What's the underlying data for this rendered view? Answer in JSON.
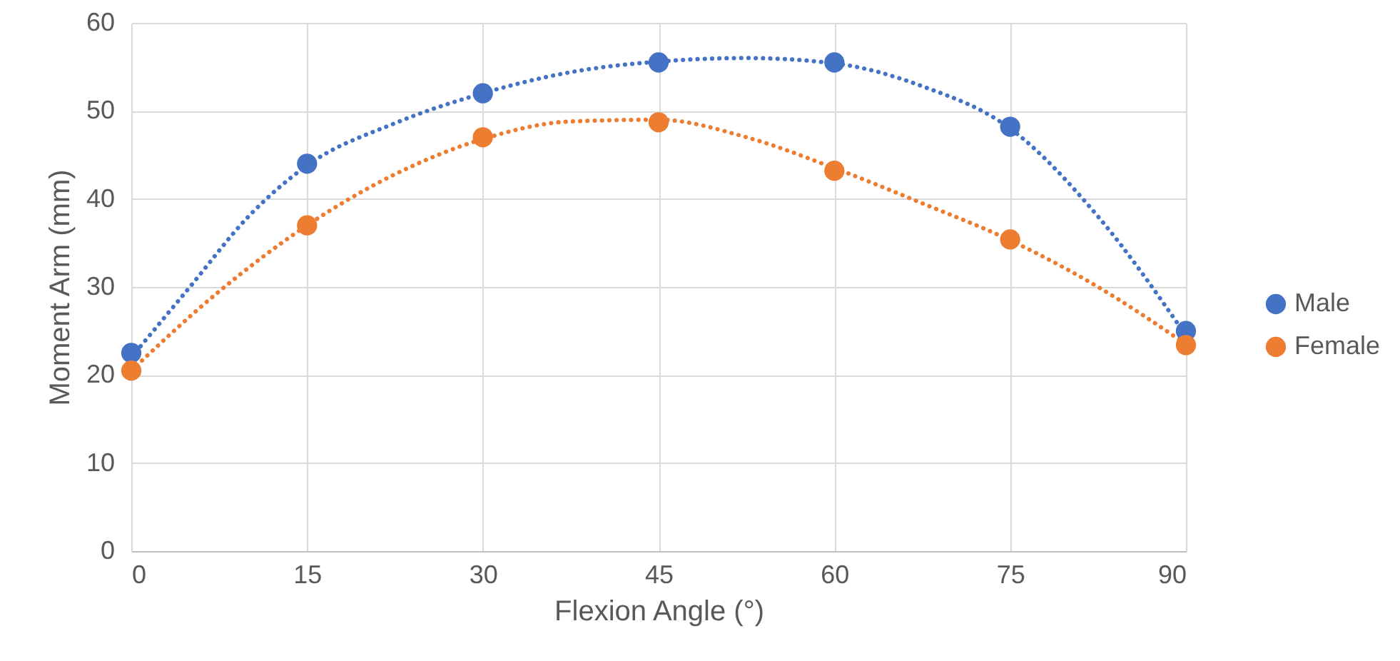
{
  "chart_data": {
    "type": "scatter",
    "xlabel": "Flexion Angle (°)",
    "ylabel": "Moment Arm (mm)",
    "x": [
      0,
      15,
      30,
      45,
      60,
      75,
      90
    ],
    "series": [
      {
        "name": "Male",
        "color": "#4472c4",
        "values": [
          22.5,
          44,
          52,
          55.5,
          55.5,
          48.2,
          25
        ]
      },
      {
        "name": "Female",
        "color": "#ed7d31",
        "values": [
          20.5,
          37,
          47,
          48.7,
          43.2,
          35.4,
          23.4
        ]
      },
      {
        "type": "line",
        "color": "#4472c4",
        "line_style": "dotted",
        "marker": "none",
        "x": [
          0,
          5,
          10,
          15,
          22.5,
          30,
          37.5,
          45,
          52.5,
          60,
          67.5,
          75,
          82.5,
          90
        ],
        "values": [
          22,
          30,
          38,
          43.8,
          48.6,
          52,
          54.4,
          55.6,
          56,
          55.4,
          52.8,
          48,
          38,
          24.5
        ]
      },
      {
        "type": "line",
        "color": "#ed7d31",
        "line_style": "dotted",
        "marker": "none",
        "x": [
          0,
          7.5,
          15,
          22.5,
          30,
          37.5,
          45,
          52.5,
          60,
          67.5,
          75,
          82.5,
          90
        ],
        "values": [
          20.5,
          29.5,
          37,
          42.8,
          46.8,
          48.8,
          49,
          47,
          43.5,
          39.5,
          35.3,
          30,
          23.5
        ]
      }
    ],
    "xlim": [
      0,
      90
    ],
    "xticks": [
      0,
      15,
      30,
      45,
      60,
      75,
      90
    ],
    "ylim": [
      0,
      60
    ],
    "yticks": [
      0,
      10,
      20,
      30,
      40,
      50,
      60
    ],
    "grid": true,
    "legend": "right",
    "marker": "circle"
  }
}
